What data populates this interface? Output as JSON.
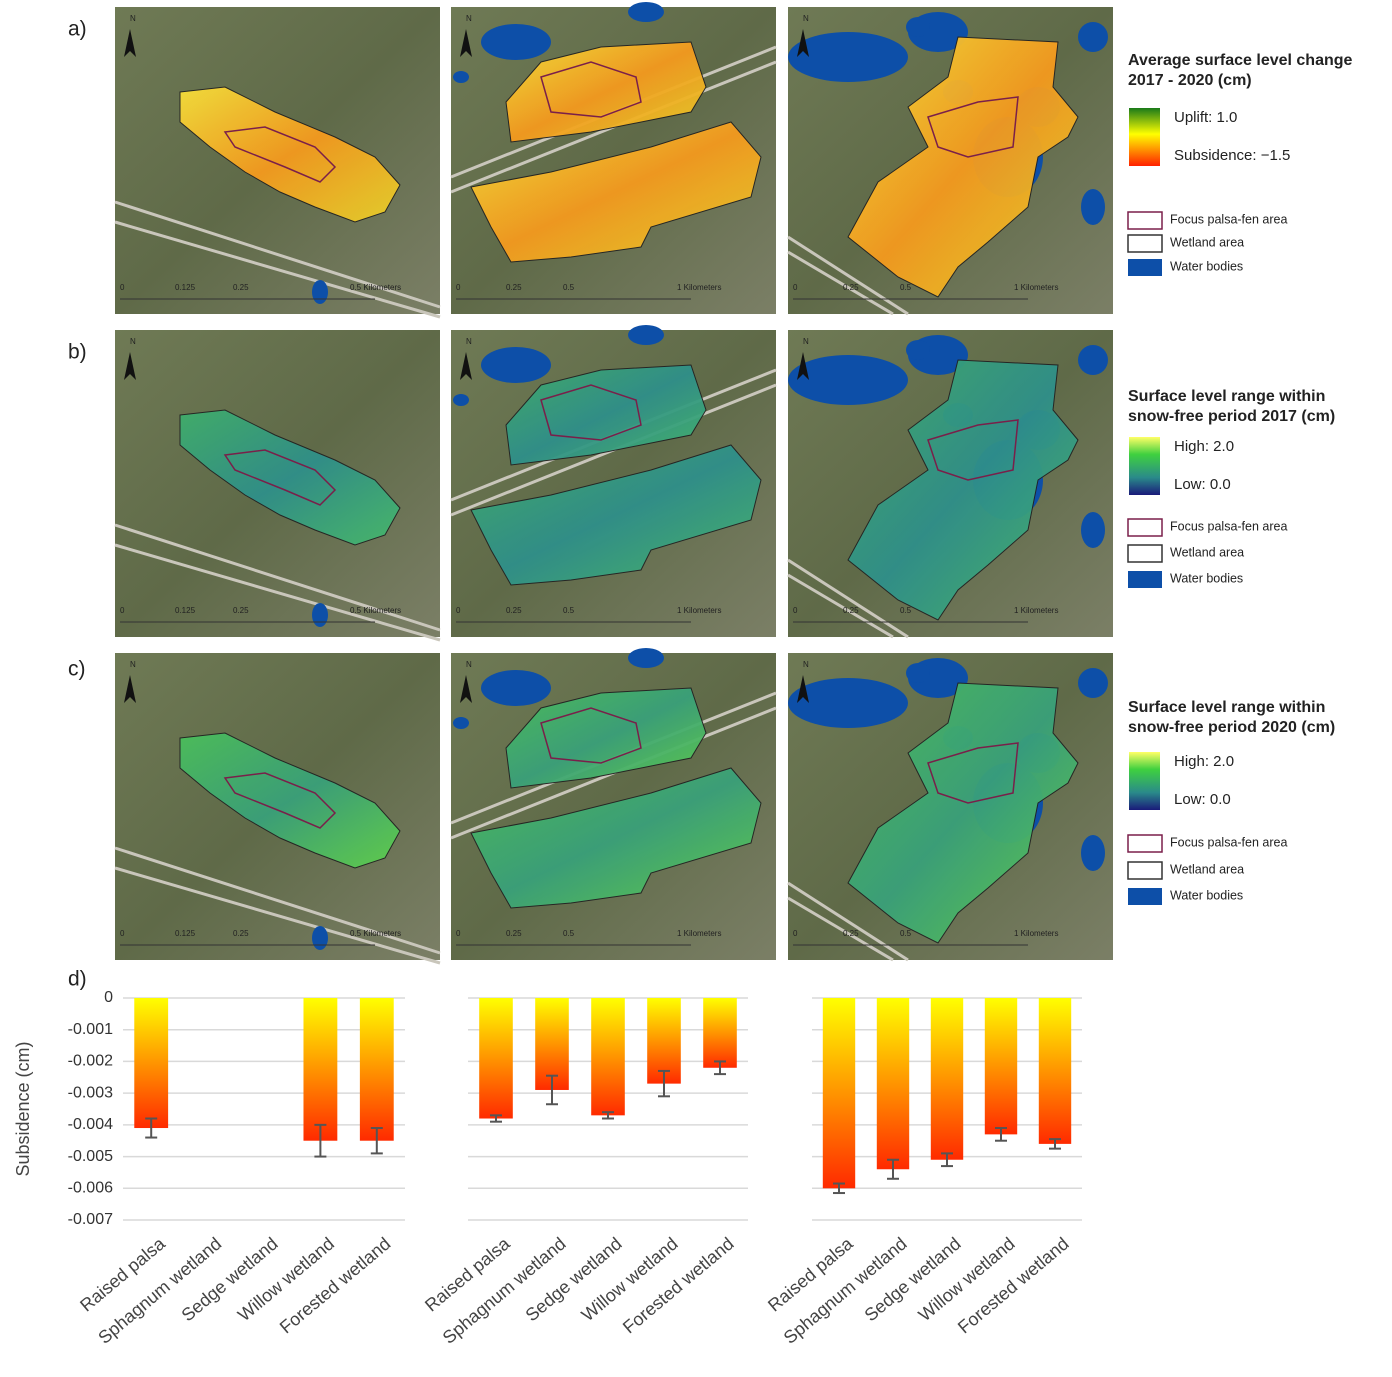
{
  "panel_labels": [
    "a)",
    "b)",
    "c)",
    "d)"
  ],
  "maps": {
    "north_label": "N",
    "scale_labels": [
      [
        "0",
        "0.125",
        "0.25",
        "0.5 Kilometers"
      ],
      [
        "0",
        "0.25",
        "0.5",
        "1 Kilometers"
      ],
      [
        "0",
        "0.25",
        "0.5",
        "1 Kilometers"
      ]
    ]
  },
  "legends": [
    {
      "title": [
        "Average surface level change",
        "2017 - 2020 (cm)"
      ],
      "high": "Uplift: 1.0",
      "low": "Subsidence: −1.5"
    },
    {
      "title": [
        "Surface level range within",
        "snow-free period 2017 (cm)"
      ],
      "high": "High: 2.0",
      "low": "Low: 0.0"
    },
    {
      "title": [
        "Surface level range within",
        "snow-free period 2020 (cm)"
      ],
      "high": "High: 2.0",
      "low": "Low: 0.0"
    }
  ],
  "legend_items": [
    "Focus palsa-fen area",
    "Wetland area",
    "Water bodies"
  ],
  "chart_data": [
    {
      "type": "bar",
      "y_label": "Subsidence (cm)",
      "tick_labels": true,
      "categories": [
        "Raised palsa",
        "Sphagnum wetland",
        "Sedge wetland",
        "Willow wetland",
        "Forested wetland"
      ],
      "values": [
        -0.0041,
        null,
        null,
        -0.0045,
        -0.0045
      ],
      "errors": [
        0.0003,
        null,
        null,
        0.0005,
        0.0004
      ],
      "color": [
        "#ffff00",
        "#ff2a00"
      ],
      "ylim": [
        -0.007,
        0
      ],
      "yticks": [
        0,
        -0.001,
        -0.002,
        -0.003,
        -0.004,
        -0.005,
        -0.006,
        -0.007
      ],
      "grid": true
    },
    {
      "type": "bar",
      "tick_labels": false,
      "categories": [
        "Raised palsa",
        "Sphagnum wetland",
        "Sedge wetland",
        "Willow wetland",
        "Forested wetland"
      ],
      "values": [
        -0.0038,
        -0.0029,
        -0.0037,
        -0.0027,
        -0.0022
      ],
      "errors": [
        0.0001,
        0.00045,
        0.0001,
        0.0004,
        0.0002
      ],
      "color": [
        "#ffff00",
        "#ff2a00"
      ],
      "ylim": [
        -0.007,
        0
      ],
      "yticks": [
        0,
        -0.001,
        -0.002,
        -0.003,
        -0.004,
        -0.005,
        -0.006,
        -0.007
      ],
      "grid": true
    },
    {
      "type": "bar",
      "tick_labels": false,
      "categories": [
        "Raised palsa",
        "Sphagnum wetland",
        "Sedge wetland",
        "Willow wetland",
        "Forested wetland"
      ],
      "values": [
        -0.006,
        -0.0054,
        -0.0051,
        -0.0043,
        -0.0046
      ],
      "errors": [
        0.00015,
        0.0003,
        0.0002,
        0.0002,
        0.00015
      ],
      "color": [
        "#ffff00",
        "#ff2a00"
      ],
      "ylim": [
        -0.007,
        0
      ],
      "yticks": [
        0,
        -0.001,
        -0.002,
        -0.003,
        -0.004,
        -0.005,
        -0.006,
        -0.007
      ],
      "grid": true
    }
  ]
}
